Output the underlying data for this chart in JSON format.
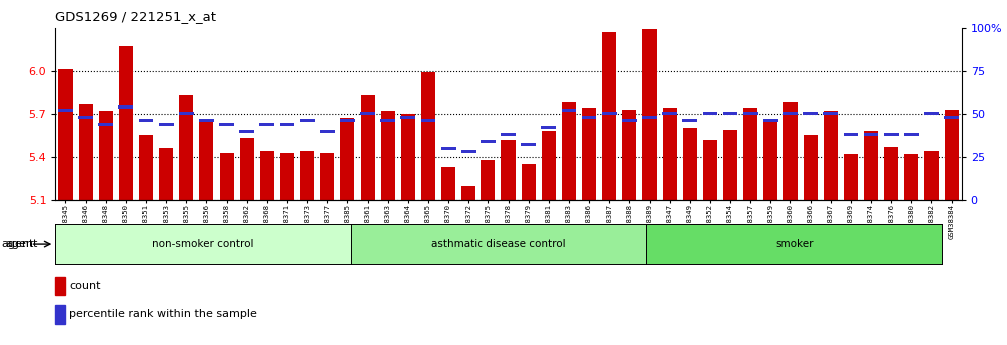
{
  "title": "GDS1269 / 221251_x_at",
  "ylim_left": [
    5.1,
    6.3
  ],
  "ylim_right": [
    0,
    100
  ],
  "yticks_left": [
    5.1,
    5.4,
    5.7,
    6.0
  ],
  "yticks_right": [
    0,
    25,
    50,
    75,
    100
  ],
  "bar_color": "#CC0000",
  "percentile_color": "#3333CC",
  "background_color": "#FFFFFF",
  "samples": [
    "GSM38345",
    "GSM38346",
    "GSM38348",
    "GSM38350",
    "GSM38351",
    "GSM38353",
    "GSM38355",
    "GSM38356",
    "GSM38358",
    "GSM38362",
    "GSM38368",
    "GSM38371",
    "GSM38373",
    "GSM38377",
    "GSM38385",
    "GSM38361",
    "GSM38363",
    "GSM38364",
    "GSM38365",
    "GSM38370",
    "GSM38372",
    "GSM38375",
    "GSM38378",
    "GSM38379",
    "GSM38381",
    "GSM38383",
    "GSM38386",
    "GSM38387",
    "GSM38388",
    "GSM38389",
    "GSM38347",
    "GSM38349",
    "GSM38352",
    "GSM38354",
    "GSM38357",
    "GSM38359",
    "GSM38360",
    "GSM38366",
    "GSM38367",
    "GSM38369",
    "GSM38374",
    "GSM38376",
    "GSM38380",
    "GSM38382",
    "GSM38384"
  ],
  "counts": [
    6.01,
    5.77,
    5.72,
    6.17,
    5.55,
    5.46,
    5.83,
    5.65,
    5.43,
    5.53,
    5.44,
    5.43,
    5.44,
    5.43,
    5.67,
    5.83,
    5.72,
    5.7,
    5.99,
    5.33,
    5.2,
    5.38,
    5.52,
    5.35,
    5.58,
    5.78,
    5.74,
    6.27,
    5.73,
    6.29,
    5.74,
    5.6,
    5.52,
    5.59,
    5.74,
    5.64,
    5.78,
    5.55,
    5.72,
    5.42,
    5.58,
    5.47,
    5.42,
    5.44,
    5.73
  ],
  "percentile_ranks": [
    52,
    48,
    44,
    54,
    46,
    44,
    50,
    46,
    44,
    40,
    44,
    44,
    46,
    40,
    46,
    50,
    46,
    48,
    46,
    30,
    28,
    34,
    38,
    32,
    42,
    52,
    48,
    50,
    46,
    48,
    50,
    46,
    50,
    50,
    50,
    46,
    50,
    50,
    50,
    38,
    38,
    38,
    38,
    50,
    48
  ],
  "groups": [
    {
      "label": "non-smoker control",
      "start": 0,
      "end": 15,
      "color": "#CCFFCC"
    },
    {
      "label": "asthmatic disease control",
      "start": 15,
      "end": 30,
      "color": "#99EE99"
    },
    {
      "label": "smoker",
      "start": 30,
      "end": 45,
      "color": "#66DD66"
    }
  ],
  "agent_label": "agent",
  "legend_count_label": "count",
  "legend_percentile_label": "percentile rank within the sample"
}
